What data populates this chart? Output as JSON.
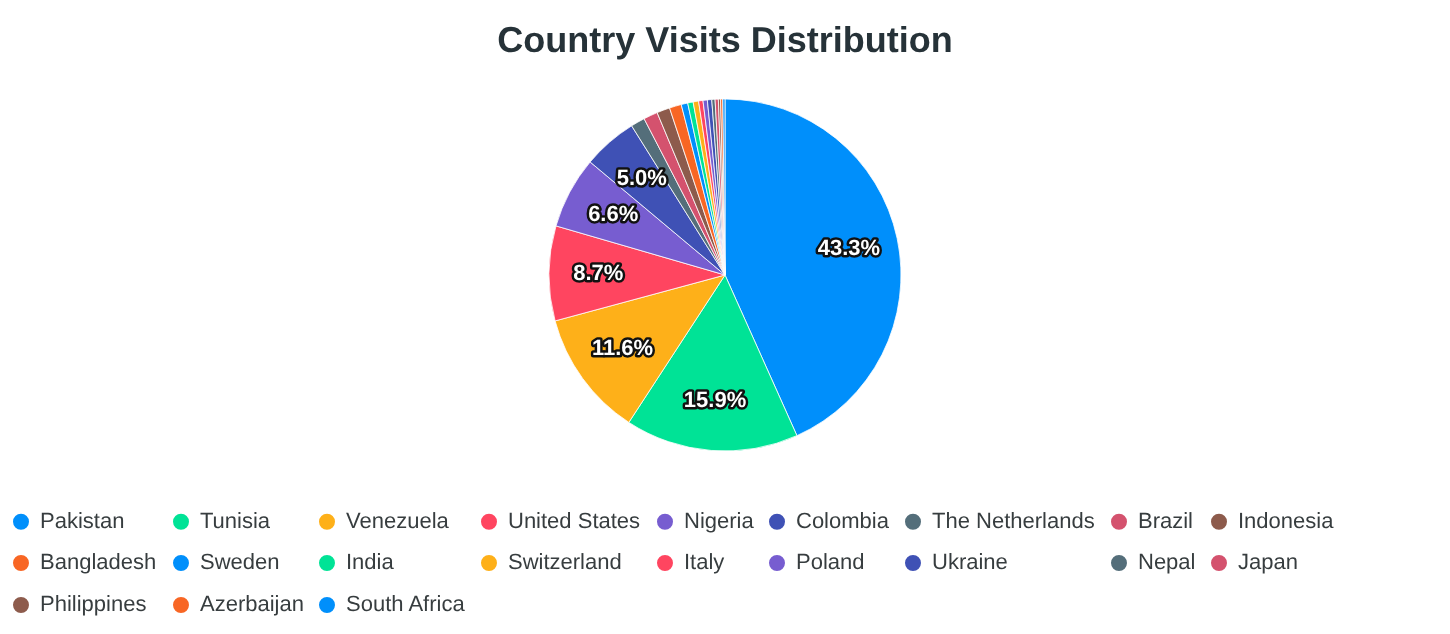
{
  "chart_data": {
    "type": "pie",
    "title": "Country Visits Distribution",
    "categories": [
      "Pakistan",
      "Tunisia",
      "Venezuela",
      "United States",
      "Nigeria",
      "Colombia",
      "The Netherlands",
      "Brazil",
      "Indonesia",
      "Bangladesh",
      "Sweden",
      "India",
      "Switzerland",
      "Italy",
      "Poland",
      "Ukraine",
      "Nepal",
      "Japan",
      "Philippines",
      "Azerbaijan",
      "South Africa"
    ],
    "values": [
      43.3,
      15.9,
      11.6,
      8.7,
      6.6,
      5.0,
      1.3,
      1.3,
      1.2,
      1.1,
      0.6,
      0.5,
      0.5,
      0.4,
      0.4,
      0.4,
      0.3,
      0.3,
      0.2,
      0.2,
      0.2
    ],
    "colors": [
      "#008ffb",
      "#00e396",
      "#feb019",
      "#ff4560",
      "#775dd0",
      "#3f51b5",
      "#546e7a",
      "#d4526e",
      "#8d5b4c",
      "#f86624",
      "#008ffb",
      "#00e396",
      "#feb019",
      "#ff4560",
      "#775dd0",
      "#3f51b5",
      "#546e7a",
      "#d4526e",
      "#8d5b4c",
      "#f86624",
      "#008ffb"
    ],
    "value_labels": [
      "43.3%",
      "15.9%",
      "11.6%",
      "8.7%",
      "6.6%",
      "5.0%",
      null,
      null,
      null,
      null,
      null,
      null,
      null,
      null,
      null,
      null,
      null,
      null,
      null,
      null,
      null
    ],
    "legend": "bottom"
  }
}
